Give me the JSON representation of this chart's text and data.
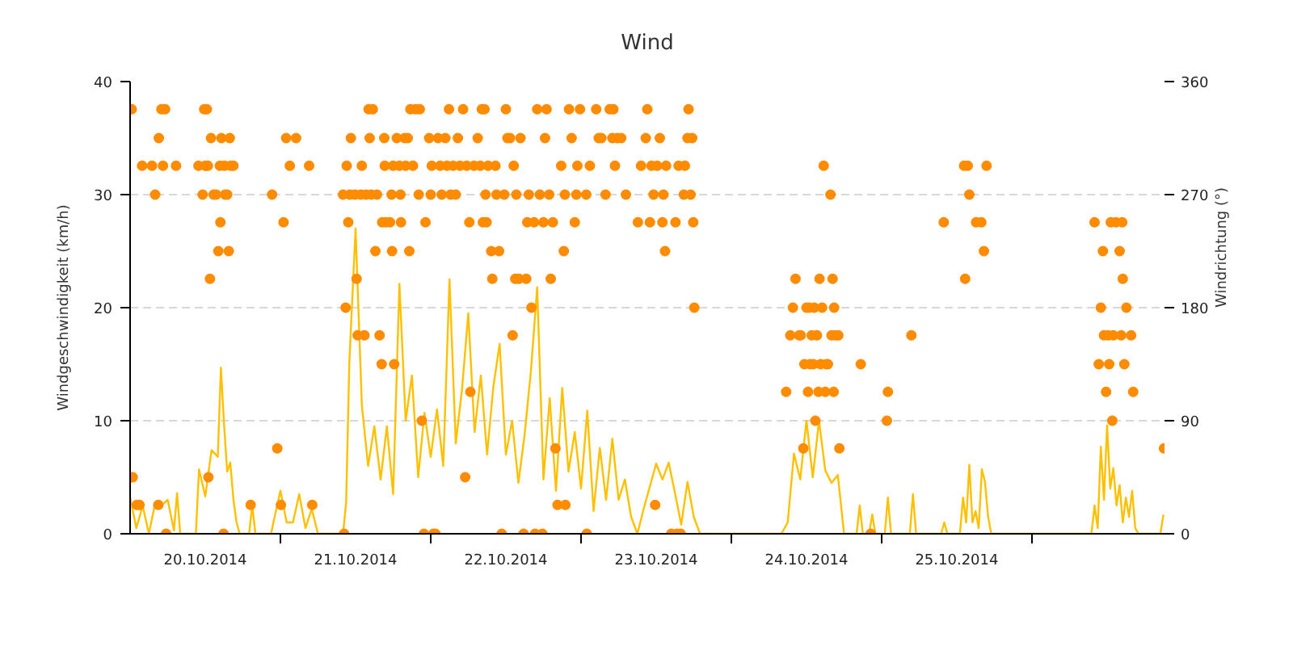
{
  "chart_data": {
    "type": "line",
    "title": "Wind",
    "ylabel": "Windgeschwindigkeit (km/h)",
    "y2label": "Windrichtung (°)",
    "xlim": [
      "2014-10-20T00:00",
      "2014-10-26T21:10"
    ],
    "xticks": [
      {
        "value": "2014-10-20T12:00",
        "label": "20.10.2014"
      },
      {
        "value": "2014-10-21T12:00",
        "label": "21.10.2014"
      },
      {
        "value": "2014-10-22T12:00",
        "label": "22.10.2014"
      },
      {
        "value": "2014-10-23T12:00",
        "label": "23.10.2014"
      },
      {
        "value": "2014-10-24T12:00",
        "label": "24.10.2014"
      },
      {
        "value": "2014-10-25T12:00",
        "label": "25.10.2014"
      },
      {
        "value": "2014-10-21T00:00",
        "label": null
      },
      {
        "value": "2014-10-22T00:00",
        "label": null
      },
      {
        "value": "2014-10-23T00:00",
        "label": null
      },
      {
        "value": "2014-10-24T00:00",
        "label": null
      },
      {
        "value": "2014-10-25T00:00",
        "label": null
      },
      {
        "value": "2014-10-26T00:00",
        "label": null
      }
    ],
    "ylim": [
      0,
      40
    ],
    "yticks": [
      0,
      10,
      20,
      30,
      40
    ],
    "y2lim": [
      0,
      360
    ],
    "y2ticks": [
      0,
      90,
      180,
      270,
      360
    ],
    "grid": "y",
    "series": [
      {
        "color": "#ffc000",
        "line_style": "solid",
        "x": [
          "2014-10-20T00:00",
          "2014-10-20T01:00",
          "2014-10-20T02:00",
          "2014-10-20T03:00",
          "2014-10-20T04:00",
          "2014-10-20T05:00",
          "2014-10-20T06:00",
          "2014-10-20T07:00",
          "2014-10-20T07:30",
          "2014-10-20T08:00",
          "2014-10-20T10:30",
          "2014-10-20T11:00",
          "2014-10-20T12:00",
          "2014-10-20T13:00",
          "2014-10-20T14:00",
          "2014-10-20T14:30",
          "2014-10-20T15:00",
          "2014-10-20T15:30",
          "2014-10-20T16:00",
          "2014-10-20T16:30",
          "2014-10-20T17:00",
          "2014-10-20T17:30",
          "2014-10-20T19:00",
          "2014-10-20T19:30",
          "2014-10-20T20:00",
          "2014-10-20T22:30",
          "2014-10-20T23:00",
          "2014-10-21T00:00",
          "2014-10-21T01:00",
          "2014-10-21T02:00",
          "2014-10-21T03:00",
          "2014-10-21T04:00",
          "2014-10-21T05:00",
          "2014-10-21T06:00",
          "2014-10-21T10:00",
          "2014-10-21T10:30",
          "2014-10-21T11:00",
          "2014-10-21T12:00",
          "2014-10-21T13:00",
          "2014-10-21T14:00",
          "2014-10-21T15:00",
          "2014-10-21T16:00",
          "2014-10-21T17:00",
          "2014-10-21T18:00",
          "2014-10-21T19:00",
          "2014-10-21T20:00",
          "2014-10-21T21:00",
          "2014-10-21T22:00",
          "2014-10-21T23:00",
          "2014-10-22T00:00",
          "2014-10-22T01:00",
          "2014-10-22T02:00",
          "2014-10-22T03:00",
          "2014-10-22T04:00",
          "2014-10-22T05:00",
          "2014-10-22T06:00",
          "2014-10-22T07:00",
          "2014-10-22T08:00",
          "2014-10-22T09:00",
          "2014-10-22T10:00",
          "2014-10-22T11:00",
          "2014-10-22T12:00",
          "2014-10-22T13:00",
          "2014-10-22T14:00",
          "2014-10-22T15:00",
          "2014-10-22T16:00",
          "2014-10-22T17:00",
          "2014-10-22T18:00",
          "2014-10-22T19:00",
          "2014-10-22T20:00",
          "2014-10-22T21:00",
          "2014-10-22T22:00",
          "2014-10-22T23:00",
          "2014-10-23T00:00",
          "2014-10-23T01:00",
          "2014-10-23T02:00",
          "2014-10-23T03:00",
          "2014-10-23T04:00",
          "2014-10-23T05:00",
          "2014-10-23T06:00",
          "2014-10-23T07:00",
          "2014-10-23T08:00",
          "2014-10-23T09:00",
          "2014-10-23T10:00",
          "2014-10-23T11:00",
          "2014-10-23T12:00",
          "2014-10-23T13:00",
          "2014-10-23T14:00",
          "2014-10-23T15:00",
          "2014-10-23T16:00",
          "2014-10-23T17:00",
          "2014-10-23T18:00",
          "2014-10-23T19:00",
          "2014-10-24T08:00",
          "2014-10-24T09:00",
          "2014-10-24T10:00",
          "2014-10-24T11:00",
          "2014-10-24T12:00",
          "2014-10-24T13:00",
          "2014-10-24T14:00",
          "2014-10-24T15:00",
          "2014-10-24T16:00",
          "2014-10-24T17:00",
          "2014-10-24T18:00",
          "2014-10-24T20:00",
          "2014-10-24T20:30",
          "2014-10-24T21:00",
          "2014-10-24T22:00",
          "2014-10-24T22:30",
          "2014-10-24T23:00",
          "2014-10-25T00:30",
          "2014-10-25T01:00",
          "2014-10-25T01:30",
          "2014-10-25T04:30",
          "2014-10-25T05:00",
          "2014-10-25T05:30",
          "2014-10-25T09:30",
          "2014-10-25T10:00",
          "2014-10-25T10:30",
          "2014-10-25T12:30",
          "2014-10-25T13:00",
          "2014-10-25T13:30",
          "2014-10-25T14:00",
          "2014-10-25T14:30",
          "2014-10-25T15:00",
          "2014-10-25T15:30",
          "2014-10-25T16:00",
          "2014-10-25T16:30",
          "2014-10-25T17:00",
          "2014-10-25T17:30",
          "2014-10-26T09:30",
          "2014-10-26T10:00",
          "2014-10-26T10:30",
          "2014-10-26T11:00",
          "2014-10-26T11:30",
          "2014-10-26T12:00",
          "2014-10-26T12:30",
          "2014-10-26T13:00",
          "2014-10-26T13:30",
          "2014-10-26T14:00",
          "2014-10-26T14:30",
          "2014-10-26T15:00",
          "2014-10-26T15:30",
          "2014-10-26T16:00",
          "2014-10-26T16:30",
          "2014-10-26T17:00",
          "2014-10-26T20:30",
          "2014-10-26T21:00"
        ],
        "values": [
          3.2,
          0.5,
          2.5,
          0,
          2.7,
          2.5,
          3,
          0.3,
          3.6,
          0,
          0,
          5.7,
          3.3,
          7.4,
          6.8,
          14.7,
          9.7,
          5.5,
          6.3,
          3,
          1,
          0,
          0,
          2.5,
          0,
          0,
          1.3,
          3.8,
          1,
          1,
          3.5,
          0.5,
          2.2,
          0,
          0,
          2.8,
          15.1,
          27,
          11.4,
          6,
          9.5,
          4.8,
          9.5,
          3.5,
          22.1,
          10,
          14,
          5,
          10.7,
          6.8,
          11,
          6,
          22.5,
          8,
          12.8,
          19.5,
          9,
          14,
          7,
          13,
          16.8,
          7,
          10,
          4.5,
          8.8,
          14.4,
          21.8,
          4.8,
          12,
          3.8,
          12.9,
          5.5,
          9,
          4,
          10.9,
          2,
          7.6,
          3,
          8.4,
          3,
          4.8,
          1.5,
          0,
          2.2,
          4.2,
          6.2,
          4.8,
          6.3,
          3.6,
          0.8,
          4.6,
          1.5,
          0,
          0,
          1,
          7.1,
          4.8,
          10,
          5,
          10,
          5.6,
          4.5,
          5.2,
          0,
          0,
          2.5,
          0,
          0,
          1.7,
          0,
          0,
          3.2,
          0,
          0,
          3.5,
          0,
          0,
          1,
          0,
          0,
          3.2,
          1,
          6.1,
          1,
          2,
          0.5,
          5.7,
          4.6,
          1.5,
          0,
          0,
          2.5,
          0.5,
          7.7,
          3,
          9.6,
          4,
          5.8,
          2.5,
          4.3,
          1,
          3.2,
          1.5,
          3.8,
          0.5,
          0,
          0,
          1.7
        ]
      },
      {
        "type": "scatter",
        "axis": "y2",
        "color": "#ff8c00",
        "marker": "circle",
        "x": [
          "2014-10-20T00:15",
          "2014-10-20T00:25",
          "2014-10-20T01:05",
          "2014-10-20T01:30",
          "2014-10-20T01:55",
          "2014-10-20T03:30",
          "2014-10-20T04:00",
          "2014-10-20T04:30",
          "2014-10-20T04:35",
          "2014-10-20T05:00",
          "2014-10-20T05:15",
          "2014-10-20T05:35",
          "2014-10-20T05:45",
          "2014-10-20T07:20",
          "2014-10-20T10:55",
          "2014-10-20T11:35",
          "2014-10-20T11:50",
          "2014-10-20T12:00",
          "2014-10-20T12:15",
          "2014-10-20T12:25",
          "2014-10-20T12:30",
          "2014-10-20T12:45",
          "2014-10-20T12:55",
          "2014-10-20T13:20",
          "2014-10-20T13:45",
          "2014-10-20T14:05",
          "2014-10-20T14:20",
          "2014-10-20T14:25",
          "2014-10-20T14:35",
          "2014-10-20T14:55",
          "2014-10-20T15:05",
          "2014-10-20T15:10",
          "2014-10-20T15:30",
          "2014-10-20T15:45",
          "2014-10-20T15:55",
          "2014-10-20T16:05",
          "2014-10-20T16:30",
          "2014-10-20T19:15",
          "2014-10-20T22:40",
          "2014-10-20T23:30",
          "2014-10-21T00:05",
          "2014-10-21T00:30",
          "2014-10-21T00:55",
          "2014-10-21T01:30",
          "2014-10-21T02:30",
          "2014-10-21T04:35",
          "2014-10-21T05:05",
          "2014-10-21T10:00",
          "2014-10-21T10:10",
          "2014-10-21T10:25",
          "2014-10-21T10:35",
          "2014-10-21T10:50",
          "2014-10-21T11:05",
          "2014-10-21T11:15",
          "2014-10-21T11:55",
          "2014-10-21T12:10",
          "2014-10-21T12:20",
          "2014-10-21T12:50",
          "2014-10-21T13:00",
          "2014-10-21T13:25",
          "2014-10-21T13:40",
          "2014-10-21T14:05",
          "2014-10-21T14:15",
          "2014-10-21T14:30",
          "2014-10-21T14:45",
          "2014-10-21T15:10",
          "2014-10-21T15:25",
          "2014-10-21T15:50",
          "2014-10-21T16:10",
          "2014-10-21T16:15",
          "2014-10-21T16:35",
          "2014-10-21T16:40",
          "2014-10-21T16:50",
          "2014-10-21T17:30",
          "2014-10-21T17:45",
          "2014-10-21T17:50",
          "2014-10-21T18:00",
          "2014-10-21T18:10",
          "2014-10-21T18:35",
          "2014-10-21T19:00",
          "2014-10-21T19:10",
          "2014-10-21T19:15",
          "2014-10-21T19:50",
          "2014-10-21T20:00",
          "2014-10-21T20:20",
          "2014-10-21T20:35",
          "2014-10-21T20:45",
          "2014-10-21T21:10",
          "2014-10-21T21:35",
          "2014-10-21T22:05",
          "2014-10-21T22:15",
          "2014-10-21T22:35",
          "2014-10-21T22:55",
          "2014-10-21T23:10",
          "2014-10-21T23:45",
          "2014-10-22T00:00",
          "2014-10-22T00:10",
          "2014-10-22T00:25",
          "2014-10-22T00:45",
          "2014-10-22T01:10",
          "2014-10-22T01:30",
          "2014-10-22T01:45",
          "2014-10-22T02:20",
          "2014-10-22T02:35",
          "2014-10-22T02:55",
          "2014-10-22T03:10",
          "2014-10-22T03:35",
          "2014-10-22T04:00",
          "2014-10-22T04:20",
          "2014-10-22T04:40",
          "2014-10-22T05:10",
          "2014-10-22T05:30",
          "2014-10-22T05:45",
          "2014-10-22T06:10",
          "2014-10-22T06:20",
          "2014-10-22T06:55",
          "2014-10-22T07:30",
          "2014-10-22T07:55",
          "2014-10-22T08:10",
          "2014-10-22T08:20",
          "2014-10-22T08:35",
          "2014-10-22T08:45",
          "2014-10-22T08:55",
          "2014-10-22T09:10",
          "2014-10-22T09:40",
          "2014-10-22T09:50",
          "2014-10-22T10:20",
          "2014-10-22T10:30",
          "2014-10-22T10:55",
          "2014-10-22T11:20",
          "2014-10-22T11:45",
          "2014-10-22T12:00",
          "2014-10-22T12:15",
          "2014-10-22T12:40",
          "2014-10-22T13:05",
          "2014-10-22T13:15",
          "2014-10-22T13:30",
          "2014-10-22T13:40",
          "2014-10-22T14:05",
          "2014-10-22T14:20",
          "2014-10-22T14:50",
          "2014-10-22T15:15",
          "2014-10-22T15:25",
          "2014-10-22T15:40",
          "2014-10-22T16:05",
          "2014-10-22T16:30",
          "2014-10-22T16:40",
          "2014-10-22T17:00",
          "2014-10-22T17:25",
          "2014-10-22T17:50",
          "2014-10-22T18:00",
          "2014-10-22T18:15",
          "2014-10-22T18:30",
          "2014-10-22T18:55",
          "2014-10-22T19:10",
          "2014-10-22T19:30",
          "2014-10-22T19:55",
          "2014-10-22T20:15",
          "2014-10-22T20:50",
          "2014-10-22T21:15",
          "2014-10-22T21:25",
          "2014-10-22T21:30",
          "2014-10-22T22:05",
          "2014-10-22T22:30",
          "2014-10-22T23:00",
          "2014-10-22T23:15",
          "2014-10-22T23:25",
          "2014-10-22T23:50",
          "2014-10-23T00:50",
          "2014-10-23T00:55",
          "2014-10-23T01:25",
          "2014-10-23T02:25",
          "2014-10-23T02:50",
          "2014-10-23T03:15",
          "2014-10-23T03:55",
          "2014-10-23T04:35",
          "2014-10-23T05:00",
          "2014-10-23T05:10",
          "2014-10-23T05:25",
          "2014-10-23T05:50",
          "2014-10-23T06:25",
          "2014-10-23T07:10",
          "2014-10-23T09:05",
          "2014-10-23T09:35",
          "2014-10-23T10:20",
          "2014-10-23T10:35",
          "2014-10-23T11:00",
          "2014-10-23T11:15",
          "2014-10-23T11:35",
          "2014-10-23T11:50",
          "2014-10-23T12:10",
          "2014-10-23T12:35",
          "2014-10-23T13:00",
          "2014-10-23T13:10",
          "2014-10-23T13:25",
          "2014-10-23T13:35",
          "2014-10-23T14:25",
          "2014-10-23T15:05",
          "2014-10-23T15:20",
          "2014-10-23T15:35",
          "2014-10-23T15:55",
          "2014-10-23T16:25",
          "2014-10-23T16:35",
          "2014-10-23T17:00",
          "2014-10-23T17:10",
          "2014-10-23T17:30",
          "2014-10-23T17:45",
          "2014-10-23T17:55",
          "2014-10-23T18:05",
          "2014-10-24T08:45",
          "2014-10-24T09:25",
          "2014-10-24T09:50",
          "2014-10-24T10:15",
          "2014-10-24T10:50",
          "2014-10-24T11:05",
          "2014-10-24T11:30",
          "2014-10-24T11:40",
          "2014-10-24T12:00",
          "2014-10-24T12:15",
          "2014-10-24T12:25",
          "2014-10-24T12:35",
          "2014-10-24T12:50",
          "2014-10-24T13:05",
          "2014-10-24T13:15",
          "2014-10-24T13:25",
          "2014-10-24T13:40",
          "2014-10-24T13:55",
          "2014-10-24T14:05",
          "2014-10-24T14:15",
          "2014-10-24T14:30",
          "2014-10-24T14:45",
          "2014-10-24T15:00",
          "2014-10-24T15:10",
          "2014-10-24T15:25",
          "2014-10-24T15:50",
          "2014-10-24T16:00",
          "2014-10-24T16:10",
          "2014-10-24T16:20",
          "2014-10-24T16:25",
          "2014-10-24T16:40",
          "2014-10-24T17:05",
          "2014-10-24T17:15",
          "2014-10-24T20:40",
          "2014-10-24T22:15",
          "2014-10-25T00:50",
          "2014-10-25T01:00",
          "2014-10-25T04:45",
          "2014-10-25T09:55",
          "2014-10-25T13:10",
          "2014-10-25T13:20",
          "2014-10-25T13:45",
          "2014-10-25T14:00",
          "2014-10-25T15:05",
          "2014-10-25T15:55",
          "2014-10-25T16:20",
          "2014-10-25T16:45",
          "2014-10-26T10:00",
          "2014-10-26T10:40",
          "2014-10-26T11:00",
          "2014-10-26T11:20",
          "2014-10-26T11:30",
          "2014-10-26T11:50",
          "2014-10-26T12:10",
          "2014-10-26T12:20",
          "2014-10-26T12:35",
          "2014-10-26T12:50",
          "2014-10-26T13:00",
          "2014-10-26T13:25",
          "2014-10-26T14:00",
          "2014-10-26T14:15",
          "2014-10-26T14:25",
          "2014-10-26T14:30",
          "2014-10-26T14:45",
          "2014-10-26T15:05",
          "2014-10-26T15:50",
          "2014-10-26T16:10",
          "2014-10-26T21:05"
        ],
        "values": [
          338,
          45,
          23,
          23,
          293,
          293,
          270,
          23,
          315,
          338,
          293,
          338,
          0,
          293,
          293,
          270,
          338,
          293,
          338,
          293,
          45,
          203,
          315,
          270,
          270,
          225,
          293,
          248,
          315,
          0,
          293,
          270,
          270,
          225,
          315,
          293,
          293,
          23,
          270,
          68,
          23,
          248,
          315,
          293,
          315,
          293,
          23,
          270,
          0,
          180,
          293,
          248,
          270,
          315,
          270,
          203,
          158,
          270,
          293,
          158,
          270,
          338,
          315,
          270,
          338,
          225,
          270,
          158,
          135,
          248,
          315,
          293,
          248,
          248,
          270,
          225,
          293,
          135,
          315,
          293,
          270,
          248,
          315,
          293,
          315,
          225,
          338,
          293,
          338,
          270,
          338,
          90,
          0,
          248,
          315,
          270,
          293,
          0,
          0,
          315,
          293,
          270,
          315,
          293,
          338,
          270,
          293,
          270,
          315,
          293,
          338,
          45,
          293,
          248,
          113,
          293,
          315,
          293,
          338,
          248,
          338,
          270,
          248,
          293,
          225,
          203,
          293,
          270,
          225,
          0,
          270,
          338,
          315,
          315,
          158,
          293,
          203,
          270,
          203,
          315,
          0,
          203,
          248,
          270,
          180,
          248,
          0,
          338,
          270,
          0,
          248,
          315,
          338,
          270,
          203,
          248,
          68,
          23,
          293,
          225,
          270,
          23,
          338,
          315,
          248,
          270,
          293,
          338,
          270,
          0,
          293,
          338,
          315,
          315,
          270,
          338,
          315,
          338,
          293,
          315,
          315,
          270,
          248,
          293,
          315,
          338,
          248,
          293,
          270,
          23,
          293,
          315,
          248,
          270,
          225,
          293,
          0,
          248,
          0,
          293,
          0,
          270,
          293,
          315,
          338,
          270,
          315,
          248,
          180,
          113,
          158,
          180,
          203,
          158,
          158,
          68,
          135,
          180,
          113,
          180,
          135,
          158,
          135,
          180,
          90,
          158,
          113,
          203,
          135,
          180,
          293,
          113,
          135,
          135,
          270,
          158,
          203,
          113,
          180,
          158,
          158,
          68,
          135,
          0,
          90,
          113,
          158,
          248,
          293,
          203,
          293,
          270,
          248,
          248,
          225,
          293,
          248,
          135,
          180,
          225,
          158,
          113,
          158,
          135,
          248,
          90,
          158,
          248,
          225,
          158,
          248,
          203,
          135,
          180,
          158,
          113,
          68
        ]
      }
    ]
  }
}
